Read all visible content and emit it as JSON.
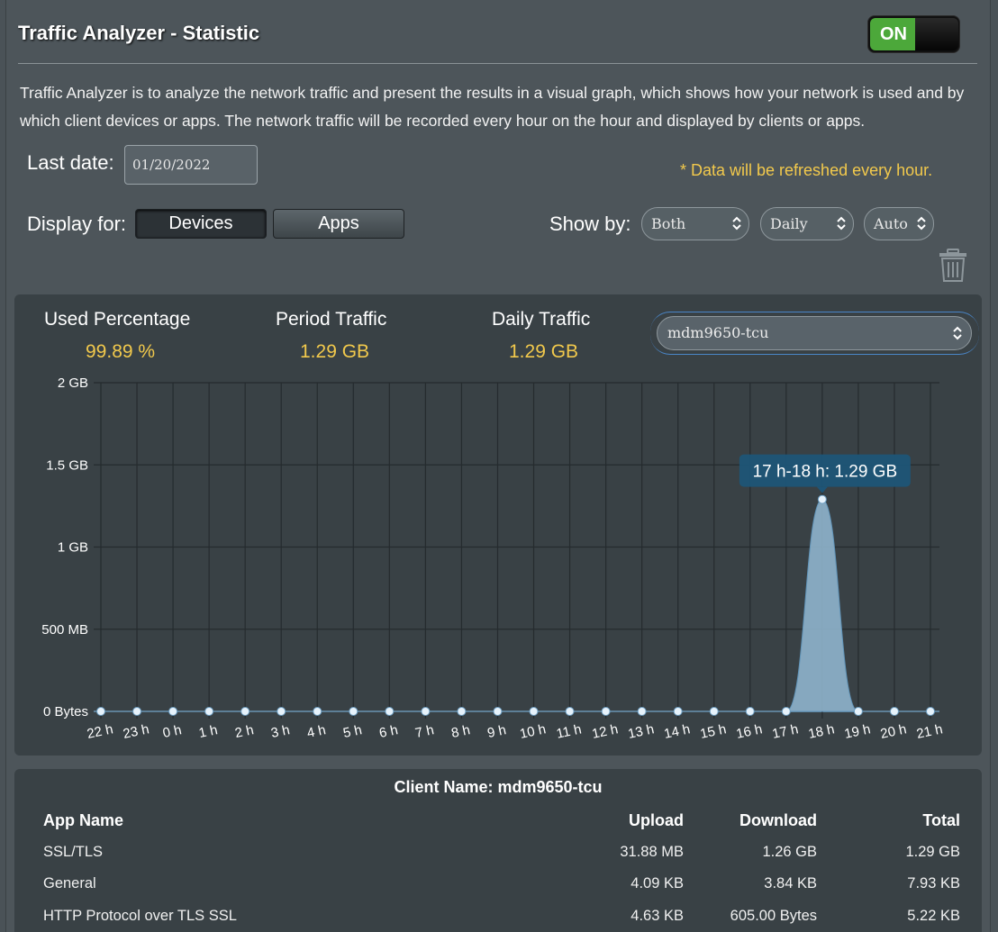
{
  "header": {
    "title": "Traffic Analyzer - Statistic",
    "toggle_label": "ON"
  },
  "description": "Traffic Analyzer is to analyze the network traffic and present the results in a visual graph, which shows how your network is used and by which client devices or apps. The network traffic will be recorded every hour on the hour and displayed by clients or apps.",
  "controls": {
    "last_date_label": "Last date:",
    "last_date_value": "01/20/2022",
    "refresh_note": "* Data will be refreshed every hour.",
    "display_for_label": "Display for:",
    "devices_button": "Devices",
    "apps_button": "Apps",
    "show_by_label": "Show by:",
    "show_by_type": "Both",
    "show_by_period": "Daily",
    "show_by_unit": "Auto"
  },
  "stats": {
    "used_percentage_label": "Used Percentage",
    "used_percentage_value": "99.89 %",
    "period_traffic_label": "Period Traffic",
    "period_traffic_value": "1.29 GB",
    "daily_traffic_label": "Daily Traffic",
    "daily_traffic_value": "1.29 GB",
    "client_select": "mdm9650-tcu"
  },
  "chart_data": {
    "type": "area",
    "x": [
      "22 h",
      "23 h",
      "0 h",
      "1 h",
      "2 h",
      "3 h",
      "4 h",
      "5 h",
      "6 h",
      "7 h",
      "8 h",
      "9 h",
      "10 h",
      "11 h",
      "12 h",
      "13 h",
      "14 h",
      "15 h",
      "16 h",
      "17 h",
      "18 h",
      "19 h",
      "20 h",
      "21 h"
    ],
    "values_gb": [
      0,
      0,
      0,
      0,
      0,
      0,
      0,
      0,
      0,
      0,
      0,
      0,
      0,
      0,
      0,
      0,
      0,
      0,
      0,
      0,
      1.29,
      0,
      0,
      0
    ],
    "y_ticks": [
      "0 Bytes",
      "500 MB",
      "1 GB",
      "1.5 GB",
      "2 GB"
    ],
    "ylim_gb": [
      0,
      2
    ],
    "tooltip": "17 h-18 h: 1.29 GB",
    "grid": true,
    "colors": {
      "area": "#8fb4cc",
      "point": "#e6f2fb",
      "line": "#5f93b8"
    }
  },
  "table": {
    "client_name": "Client Name: mdm9650-tcu",
    "columns": [
      "App Name",
      "Upload",
      "Download",
      "Total"
    ],
    "rows": [
      [
        "SSL/TLS",
        "31.88 MB",
        "1.26 GB",
        "1.29 GB"
      ],
      [
        "General",
        "4.09 KB",
        "3.84 KB",
        "7.93 KB"
      ],
      [
        "HTTP Protocol over TLS SSL",
        "4.63 KB",
        "605.00 Bytes",
        "5.22 KB"
      ]
    ]
  }
}
